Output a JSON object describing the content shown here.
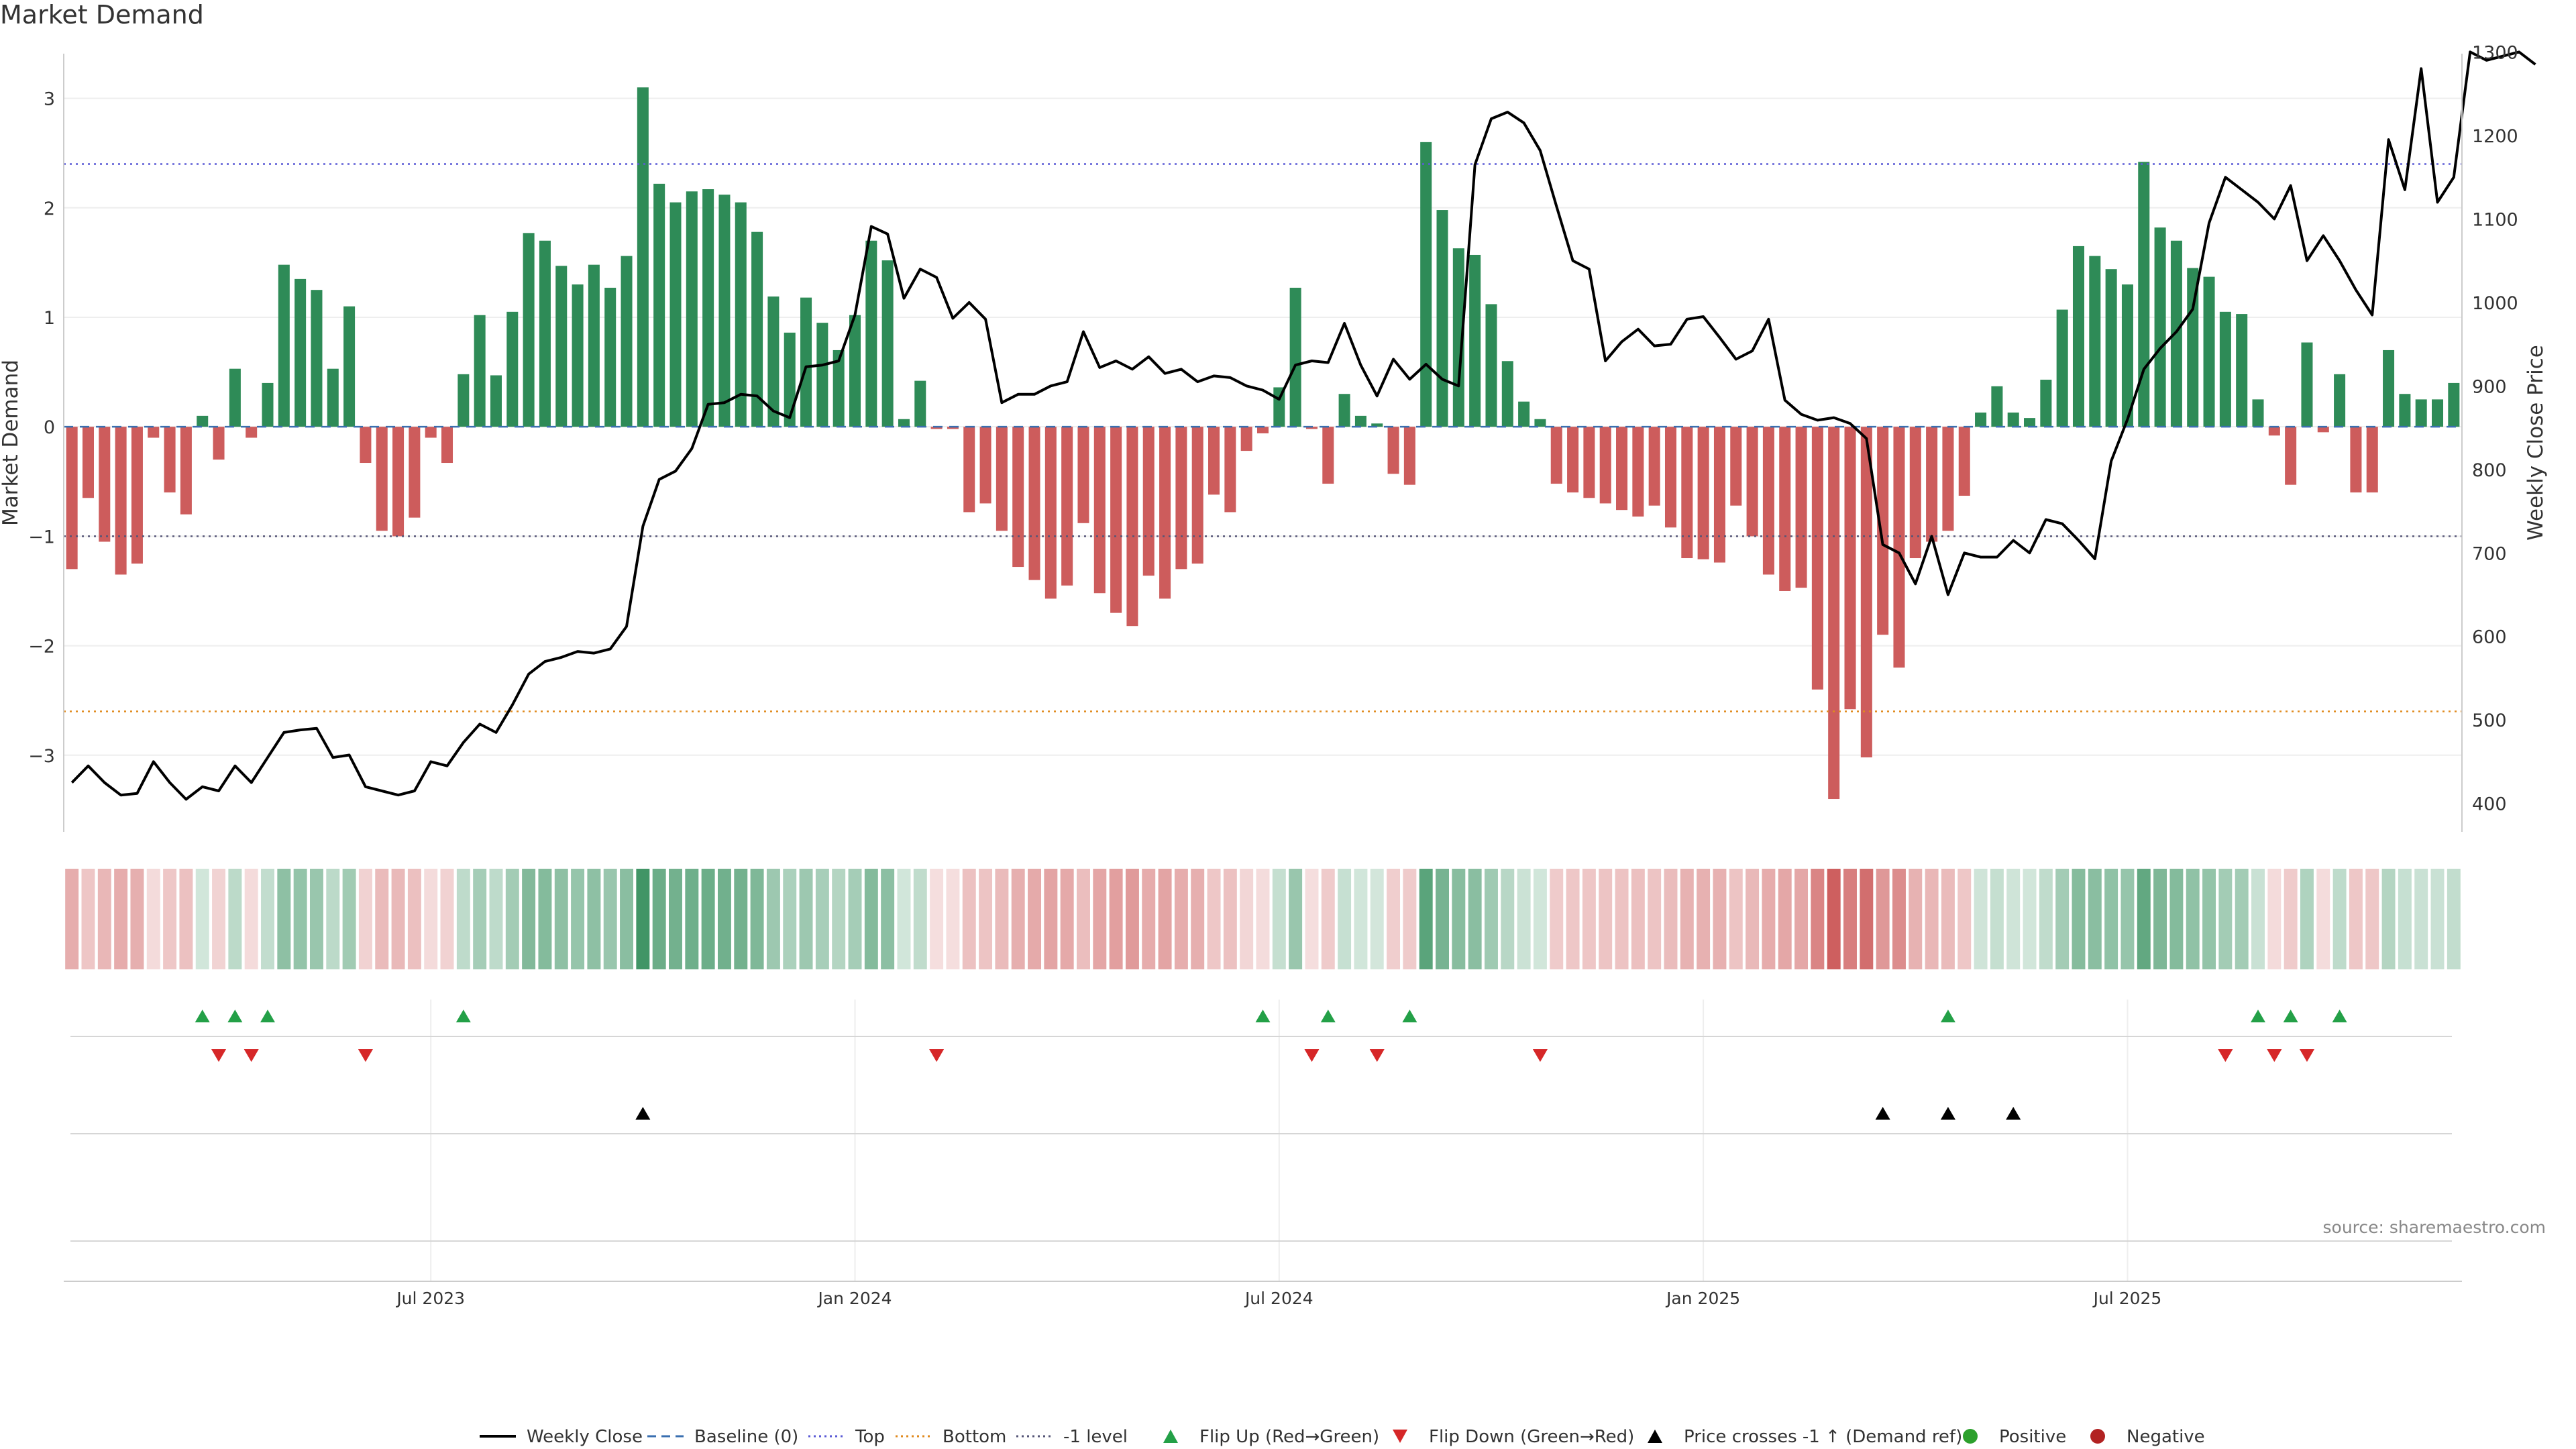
{
  "title": "Market Demand",
  "source": "source: sharemaestro.com",
  "colors": {
    "positive": "#2e8b57",
    "negative": "#cd5c5c",
    "price": "#000000",
    "top_line": "#5b5bd6",
    "bottom_line": "#e08a1e",
    "minus1_line": "#555577",
    "baseline": "#3a6fb0",
    "flip_up": "#23a047",
    "flip_down": "#d62728",
    "cross": "#000000",
    "dot_pos": "#2ca02c",
    "dot_neg": "#b22222"
  },
  "chart_data": {
    "type": "bar",
    "y_left_label": "Market Demand",
    "y_right_label": "Weekly Close Price",
    "y_left_range": [
      -3.7,
      3.5
    ],
    "y_left_ticks": [
      "3",
      "2",
      "1",
      "0",
      "−1",
      "−2",
      "−3"
    ],
    "y_left_tick_values": [
      3,
      2,
      1,
      0,
      -1,
      -2,
      -3
    ],
    "y_right_range": [
      366,
      1310
    ],
    "y_right_ticks": [
      "1300",
      "1200",
      "1100",
      "1000",
      "900",
      "800",
      "700",
      "600",
      "500",
      "400"
    ],
    "y_right_tick_values": [
      1300,
      1200,
      1100,
      1000,
      900,
      800,
      700,
      600,
      500,
      400
    ],
    "x_ticks": [
      {
        "label": "Jul 2023",
        "week": 22
      },
      {
        "label": "Jan 2024",
        "week": 48
      },
      {
        "label": "Jul 2024",
        "week": 74
      },
      {
        "label": "Jan 2025",
        "week": 100
      },
      {
        "label": "Jul 2025",
        "week": 126
      }
    ],
    "reference_lines": {
      "top": 2.4,
      "bottom": -2.6,
      "minus1": -1,
      "baseline": 0
    },
    "demand": [
      -1.3,
      -0.65,
      -1.05,
      -1.35,
      -1.25,
      -0.1,
      -0.6,
      -0.8,
      0.1,
      -0.3,
      0.53,
      -0.1,
      0.4,
      1.48,
      1.35,
      1.25,
      0.53,
      1.1,
      -0.33,
      -0.95,
      -1.0,
      -0.83,
      -0.1,
      -0.33,
      0.48,
      1.02,
      0.47,
      1.05,
      1.77,
      1.7,
      1.47,
      1.3,
      1.48,
      1.27,
      1.56,
      3.1,
      2.22,
      2.05,
      2.15,
      2.17,
      2.12,
      2.05,
      1.78,
      1.19,
      0.86,
      1.18,
      0.95,
      0.7,
      1.02,
      1.7,
      1.52,
      0.07,
      0.42,
      -0.02,
      -0.02,
      -0.78,
      -0.7,
      -0.95,
      -1.28,
      -1.4,
      -1.57,
      -1.45,
      -0.88,
      -1.52,
      -1.7,
      -1.82,
      -1.36,
      -1.57,
      -1.3,
      -1.25,
      -0.62,
      -0.78,
      -0.22,
      -0.06,
      0.36,
      1.27,
      -0.02,
      -0.52,
      0.3,
      0.1,
      0.03,
      -0.43,
      -0.53,
      2.6,
      1.98,
      1.63,
      1.57,
      1.12,
      0.6,
      0.23,
      0.07,
      -0.52,
      -0.6,
      -0.65,
      -0.7,
      -0.76,
      -0.82,
      -0.72,
      -0.92,
      -1.2,
      -1.21,
      -1.24,
      -0.72,
      -1.0,
      -1.35,
      -1.5,
      -1.47,
      -2.4,
      -3.4,
      -2.58,
      -3.02,
      -1.9,
      -2.2,
      -1.2,
      -1.05,
      -0.95,
      -0.63,
      0.13,
      0.37,
      0.13,
      0.08,
      0.43,
      1.07,
      1.65,
      1.56,
      1.44,
      1.3,
      2.42,
      1.82,
      1.7,
      1.45,
      1.37,
      1.05,
      1.03,
      0.25,
      -0.08,
      -0.53,
      0.77,
      -0.05,
      0.48,
      -0.6,
      -0.6,
      0.7,
      0.3,
      0.25,
      0.25,
      0.4
    ],
    "price": [
      425,
      445,
      425,
      410,
      412,
      450,
      425,
      405,
      420,
      415,
      445,
      425,
      455,
      485,
      488,
      490,
      455,
      458,
      420,
      415,
      410,
      415,
      450,
      445,
      473,
      495,
      485,
      518,
      555,
      570,
      575,
      582,
      580,
      585,
      612,
      732,
      788,
      798,
      825,
      878,
      880,
      890,
      888,
      870,
      862,
      923,
      925,
      930,
      985,
      1091,
      1082,
      1005,
      1040,
      1030,
      981,
      1000,
      980,
      880,
      890,
      890,
      900,
      905,
      965,
      922,
      930,
      920,
      935,
      915,
      920,
      905,
      912,
      910,
      900,
      895,
      884,
      925,
      930,
      928,
      975,
      925,
      888,
      932,
      908,
      926,
      908,
      900,
      1165,
      1220,
      1228,
      1215,
      1182,
      1115,
      1050,
      1040,
      930,
      953,
      968,
      948,
      950,
      980,
      983,
      958,
      932,
      942,
      980,
      883,
      866,
      859,
      862,
      855,
      837,
      710,
      700,
      663,
      720,
      650,
      700,
      695,
      695,
      715,
      700,
      740,
      735,
      715,
      693,
      810,
      860,
      920,
      945,
      965,
      992,
      1095,
      1150,
      1135,
      1120,
      1100,
      1140,
      1050,
      1080,
      1050,
      1015,
      985,
      1195,
      1135,
      1280,
      1120,
      1150,
      1300,
      1290,
      1295,
      1300,
      1285
    ],
    "flip_up_weeks": [
      8,
      10,
      12,
      24,
      73,
      77,
      82,
      115,
      134,
      136,
      139
    ],
    "flip_down_weeks": [
      9,
      11,
      18,
      53,
      76,
      80,
      90,
      132,
      135,
      137
    ],
    "cross_up_weeks": [
      35,
      111,
      115,
      119
    ],
    "legend": [
      {
        "label": "Weekly Close",
        "kind": "line"
      },
      {
        "label": "Baseline (0)",
        "kind": "dash-blue"
      },
      {
        "label": "Top",
        "kind": "dot-purple"
      },
      {
        "label": "Bottom",
        "kind": "dot-orange"
      },
      {
        "label": "-1 level",
        "kind": "dot-grey"
      },
      {
        "label": "Flip Up (Red→Green)",
        "kind": "tri-up-green"
      },
      {
        "label": "Flip Down (Green→Red)",
        "kind": "tri-down-red"
      },
      {
        "label": "Price crosses -1 ↑ (Demand ref)",
        "kind": "tri-up-black"
      },
      {
        "label": "Positive",
        "kind": "dot-pos"
      },
      {
        "label": "Negative",
        "kind": "dot-neg"
      }
    ]
  }
}
